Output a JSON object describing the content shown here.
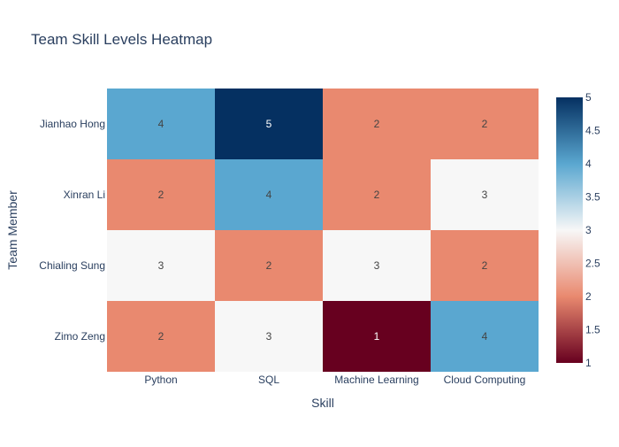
{
  "chart_data": {
    "type": "heatmap",
    "title": "Team Skill Levels Heatmap",
    "xlabel": "Skill",
    "ylabel": "Team Member",
    "x": [
      "Python",
      "SQL",
      "Machine Learning",
      "Cloud Computing"
    ],
    "y": [
      "Jianhao Hong",
      "Xinran Li",
      "Chialing Sung",
      "Zimo Zeng"
    ],
    "z": [
      [
        4,
        5,
        2,
        2
      ],
      [
        2,
        4,
        2,
        3
      ],
      [
        3,
        2,
        3,
        2
      ],
      [
        2,
        3,
        1,
        4
      ]
    ],
    "zrange": [
      1,
      5
    ],
    "colorbar_ticks": [
      "1",
      "1.5",
      "2",
      "2.5",
      "3",
      "3.5",
      "4",
      "4.5",
      "5"
    ],
    "colorscale": [
      "#67001f",
      "#e9896f",
      "#f7f7f7",
      "#5aa7d0",
      "#053061"
    ]
  }
}
